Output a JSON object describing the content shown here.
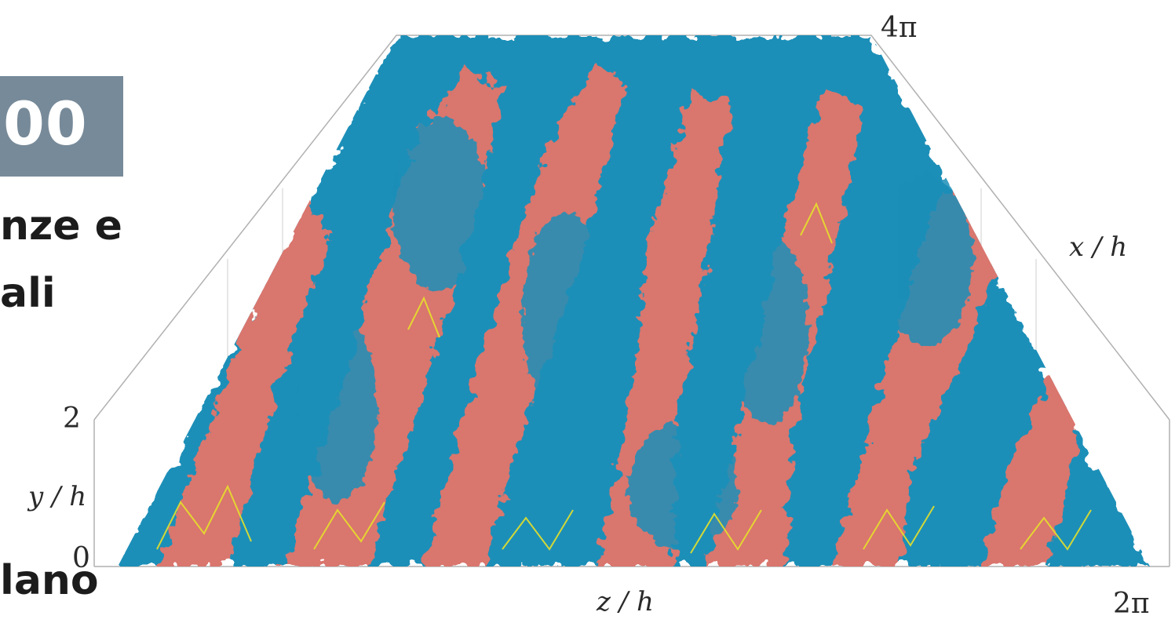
{
  "badge": {
    "text": "00"
  },
  "side_text": [
    "nze e",
    "ali",
    "lano"
  ],
  "axes": {
    "x": {
      "label": "x / h",
      "max_tick": "4π"
    },
    "y": {
      "label": "y / h",
      "ticks": [
        "0",
        "2"
      ]
    },
    "z": {
      "label": "z / h",
      "max_tick": "2π"
    }
  },
  "colors": {
    "badge": "#778a99",
    "structure_blue": "#1f8fb8",
    "structure_red": "#d9766e",
    "highlight_yellow": "#e6e02a",
    "box_lines": "#b0b0b0"
  }
}
